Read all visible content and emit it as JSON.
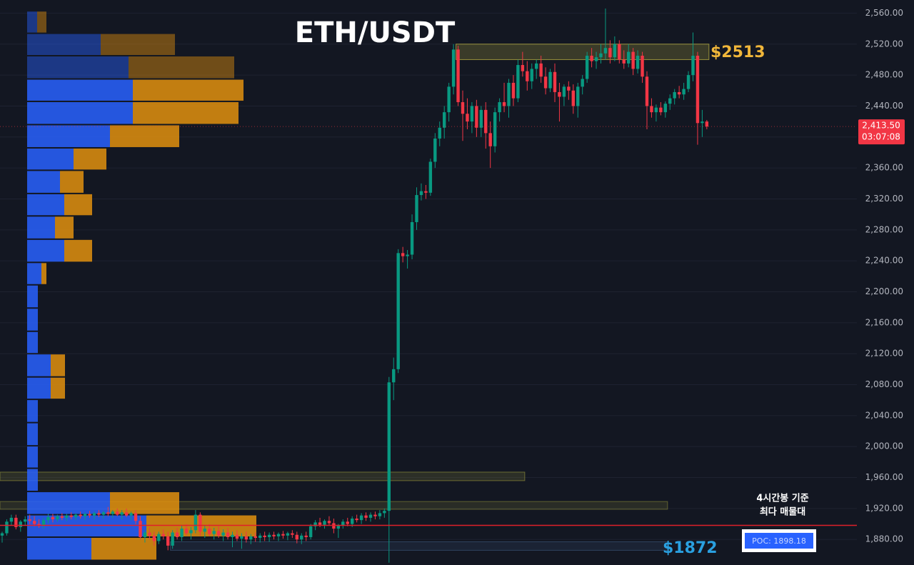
{
  "chart_data": {
    "type": "candlestick",
    "title": "ETH/USDT",
    "ylim": [
      1847,
      2577
    ],
    "yticks": [
      {
        "value": 1880,
        "label": "1,880.00"
      },
      {
        "value": 1920,
        "label": "1,920.00"
      },
      {
        "value": 1960,
        "label": "1,960.00"
      },
      {
        "value": 2000,
        "label": "2,000.00"
      },
      {
        "value": 2040,
        "label": "2,040.00"
      },
      {
        "value": 2080,
        "label": "2,080.00"
      },
      {
        "value": 2120,
        "label": "2,120.00"
      },
      {
        "value": 2160,
        "label": "2,160.00"
      },
      {
        "value": 2200,
        "label": "2,200.00"
      },
      {
        "value": 2240,
        "label": "2,240.00"
      },
      {
        "value": 2280,
        "label": "2,280.00"
      },
      {
        "value": 2320,
        "label": "2,320.00"
      },
      {
        "value": 2360,
        "label": "2,360.00"
      },
      {
        "value": 2400,
        "label": "2,400.00"
      },
      {
        "value": 2440,
        "label": "2,440.00"
      },
      {
        "value": 2480,
        "label": "2,480.00"
      },
      {
        "value": 2520,
        "label": "2,520.00"
      },
      {
        "value": 2560,
        "label": "2,560.00"
      }
    ],
    "grid": true,
    "up_color": "#089981",
    "down_color": "#f23645",
    "candles": [
      [
        1885,
        1890,
        1876,
        1888
      ],
      [
        1888,
        1906,
        1885,
        1903
      ],
      [
        1903,
        1912,
        1898,
        1908
      ],
      [
        1908,
        1912,
        1893,
        1896
      ],
      [
        1896,
        1905,
        1890,
        1903
      ],
      [
        1903,
        1910,
        1898,
        1906
      ],
      [
        1906,
        1912,
        1900,
        1904
      ],
      [
        1904,
        1910,
        1897,
        1900
      ],
      [
        1900,
        1906,
        1895,
        1898
      ],
      [
        1898,
        1908,
        1894,
        1905
      ],
      [
        1905,
        1913,
        1901,
        1909
      ],
      [
        1909,
        1913,
        1902,
        1906
      ],
      [
        1906,
        1912,
        1903,
        1910
      ],
      [
        1910,
        1914,
        1905,
        1908
      ],
      [
        1908,
        1913,
        1904,
        1911
      ],
      [
        1911,
        1915,
        1906,
        1909
      ],
      [
        1909,
        1914,
        1905,
        1912
      ],
      [
        1912,
        1916,
        1907,
        1910
      ],
      [
        1910,
        1915,
        1905,
        1913
      ],
      [
        1913,
        1917,
        1908,
        1911
      ],
      [
        1911,
        1916,
        1906,
        1914
      ],
      [
        1914,
        1918,
        1909,
        1912
      ],
      [
        1912,
        1917,
        1907,
        1915
      ],
      [
        1915,
        1922,
        1910,
        1913
      ],
      [
        1913,
        1918,
        1908,
        1916
      ],
      [
        1916,
        1920,
        1910,
        1912
      ],
      [
        1912,
        1918,
        1906,
        1915
      ],
      [
        1915,
        1920,
        1909,
        1911
      ],
      [
        1911,
        1916,
        1905,
        1914
      ],
      [
        1914,
        1918,
        1900,
        1904
      ],
      [
        1904,
        1910,
        1880,
        1883
      ],
      [
        1883,
        1892,
        1876,
        1889
      ],
      [
        1889,
        1895,
        1880,
        1885
      ],
      [
        1885,
        1890,
        1872,
        1878
      ],
      [
        1878,
        1890,
        1874,
        1887
      ],
      [
        1887,
        1893,
        1880,
        1884
      ],
      [
        1884,
        1890,
        1866,
        1872
      ],
      [
        1872,
        1892,
        1868,
        1889
      ],
      [
        1889,
        1895,
        1880,
        1883
      ],
      [
        1883,
        1898,
        1878,
        1894
      ],
      [
        1894,
        1900,
        1885,
        1888
      ],
      [
        1888,
        1896,
        1880,
        1892
      ],
      [
        1892,
        1918,
        1888,
        1912
      ],
      [
        1912,
        1915,
        1885,
        1890
      ],
      [
        1890,
        1898,
        1882,
        1894
      ],
      [
        1894,
        1900,
        1884,
        1887
      ],
      [
        1887,
        1895,
        1880,
        1891
      ],
      [
        1891,
        1897,
        1882,
        1885
      ],
      [
        1885,
        1893,
        1878,
        1889
      ],
      [
        1889,
        1895,
        1880,
        1883
      ],
      [
        1883,
        1890,
        1870,
        1886
      ],
      [
        1886,
        1892,
        1878,
        1881
      ],
      [
        1881,
        1888,
        1868,
        1884
      ],
      [
        1884,
        1890,
        1876,
        1880
      ],
      [
        1880,
        1887,
        1874,
        1884
      ],
      [
        1884,
        1889,
        1877,
        1882
      ],
      [
        1882,
        1888,
        1876,
        1885
      ],
      [
        1885,
        1890,
        1878,
        1883
      ],
      [
        1883,
        1889,
        1877,
        1886
      ],
      [
        1886,
        1890,
        1880,
        1884
      ],
      [
        1884,
        1889,
        1878,
        1887
      ],
      [
        1887,
        1891,
        1881,
        1885
      ],
      [
        1885,
        1890,
        1879,
        1888
      ],
      [
        1888,
        1892,
        1882,
        1886
      ],
      [
        1886,
        1890,
        1875,
        1880
      ],
      [
        1880,
        1888,
        1874,
        1885
      ],
      [
        1885,
        1890,
        1878,
        1883
      ],
      [
        1883,
        1900,
        1880,
        1897
      ],
      [
        1897,
        1905,
        1892,
        1902
      ],
      [
        1902,
        1908,
        1896,
        1899
      ],
      [
        1899,
        1906,
        1894,
        1904
      ],
      [
        1904,
        1910,
        1898,
        1901
      ],
      [
        1901,
        1907,
        1888,
        1894
      ],
      [
        1894,
        1900,
        1882,
        1898
      ],
      [
        1898,
        1906,
        1894,
        1903
      ],
      [
        1903,
        1908,
        1897,
        1900
      ],
      [
        1900,
        1910,
        1896,
        1907
      ],
      [
        1907,
        1912,
        1902,
        1905
      ],
      [
        1905,
        1914,
        1900,
        1911
      ],
      [
        1911,
        1915,
        1904,
        1908
      ],
      [
        1908,
        1915,
        1903,
        1912
      ],
      [
        1912,
        1916,
        1906,
        1910
      ],
      [
        1910,
        1918,
        1906,
        1914
      ],
      [
        1914,
        1920,
        1908,
        1917
      ],
      [
        1917,
        2090,
        1850,
        2083
      ],
      [
        2083,
        2115,
        2060,
        2100
      ],
      [
        2100,
        2255,
        2095,
        2250
      ],
      [
        2250,
        2258,
        2238,
        2246
      ],
      [
        2246,
        2254,
        2230,
        2248
      ],
      [
        2248,
        2300,
        2242,
        2290
      ],
      [
        2290,
        2335,
        2280,
        2325
      ],
      [
        2325,
        2340,
        2318,
        2330
      ],
      [
        2330,
        2338,
        2320,
        2328
      ],
      [
        2328,
        2372,
        2324,
        2368
      ],
      [
        2368,
        2405,
        2360,
        2398
      ],
      [
        2398,
        2420,
        2388,
        2412
      ],
      [
        2412,
        2440,
        2398,
        2432
      ],
      [
        2432,
        2470,
        2420,
        2465
      ],
      [
        2465,
        2520,
        2455,
        2513
      ],
      [
        2513,
        2518,
        2440,
        2445
      ],
      [
        2445,
        2460,
        2395,
        2430
      ],
      [
        2430,
        2450,
        2410,
        2420
      ],
      [
        2420,
        2445,
        2405,
        2440
      ],
      [
        2440,
        2448,
        2400,
        2412
      ],
      [
        2412,
        2440,
        2400,
        2435
      ],
      [
        2435,
        2445,
        2385,
        2405
      ],
      [
        2405,
        2420,
        2360,
        2388
      ],
      [
        2388,
        2438,
        2380,
        2432
      ],
      [
        2432,
        2450,
        2420,
        2445
      ],
      [
        2445,
        2470,
        2432,
        2440
      ],
      [
        2440,
        2475,
        2425,
        2470
      ],
      [
        2470,
        2480,
        2440,
        2450
      ],
      [
        2450,
        2500,
        2445,
        2493
      ],
      [
        2493,
        2510,
        2478,
        2485
      ],
      [
        2485,
        2498,
        2460,
        2472
      ],
      [
        2472,
        2495,
        2462,
        2488
      ],
      [
        2488,
        2500,
        2475,
        2495
      ],
      [
        2495,
        2505,
        2470,
        2478
      ],
      [
        2478,
        2490,
        2455,
        2463
      ],
      [
        2463,
        2488,
        2458,
        2484
      ],
      [
        2484,
        2495,
        2445,
        2458
      ],
      [
        2458,
        2470,
        2420,
        2452
      ],
      [
        2452,
        2468,
        2440,
        2465
      ],
      [
        2465,
        2472,
        2448,
        2460
      ],
      [
        2460,
        2468,
        2430,
        2440
      ],
      [
        2440,
        2470,
        2425,
        2465
      ],
      [
        2465,
        2480,
        2455,
        2475
      ],
      [
        2475,
        2510,
        2470,
        2505
      ],
      [
        2505,
        2515,
        2490,
        2498
      ],
      [
        2498,
        2510,
        2488,
        2503
      ],
      [
        2503,
        2520,
        2495,
        2508
      ],
      [
        2508,
        2566,
        2500,
        2515
      ],
      [
        2515,
        2525,
        2495,
        2503
      ],
      [
        2503,
        2530,
        2498,
        2520
      ],
      [
        2520,
        2525,
        2495,
        2500
      ],
      [
        2500,
        2512,
        2488,
        2495
      ],
      [
        2495,
        2520,
        2490,
        2510
      ],
      [
        2510,
        2515,
        2480,
        2488
      ],
      [
        2488,
        2512,
        2482,
        2505
      ],
      [
        2505,
        2510,
        2470,
        2478
      ],
      [
        2478,
        2485,
        2410,
        2440
      ],
      [
        2440,
        2450,
        2425,
        2432
      ],
      [
        2432,
        2442,
        2420,
        2438
      ],
      [
        2438,
        2445,
        2428,
        2432
      ],
      [
        2432,
        2446,
        2425,
        2443
      ],
      [
        2443,
        2455,
        2435,
        2450
      ],
      [
        2450,
        2462,
        2442,
        2458
      ],
      [
        2458,
        2466,
        2450,
        2455
      ],
      [
        2455,
        2470,
        2448,
        2462
      ],
      [
        2462,
        2485,
        2458,
        2480
      ],
      [
        2480,
        2535,
        2472,
        2505
      ],
      [
        2505,
        2510,
        2390,
        2418
      ],
      [
        2418,
        2435,
        2400,
        2420
      ],
      [
        2420,
        2422,
        2410,
        2413.5
      ]
    ],
    "profile": {
      "levels": [
        2534,
        2505,
        2475,
        2446,
        2416,
        2386,
        2357,
        2327,
        2298,
        2268,
        2238,
        2209,
        2179,
        2149,
        2120,
        2090,
        2061,
        2031,
        2001,
        1972,
        1942,
        1912,
        1883,
        1853
      ],
      "buy": [
        14,
        103,
        142,
        148,
        148,
        116,
        65,
        46,
        52,
        39,
        52,
        20,
        15,
        15,
        15,
        33,
        33,
        15,
        15,
        15,
        15,
        116,
        167,
        90
      ],
      "sell": [
        13,
        104,
        148,
        155,
        148,
        97,
        46,
        33,
        39,
        26,
        39,
        7,
        0,
        0,
        0,
        20,
        20,
        0,
        0,
        0,
        0,
        97,
        154,
        91
      ],
      "in_value_area": [
        false,
        false,
        false,
        true,
        true,
        true,
        true,
        true,
        true,
        true,
        true,
        true,
        true,
        true,
        true,
        true,
        true,
        true,
        true,
        true,
        true,
        true,
        true,
        true
      ],
      "buy_color": "#2962ff",
      "sell_color": "#e2900e"
    },
    "zones": [
      {
        "low": 2500,
        "high": 2520,
        "from": 99,
        "to": 153,
        "color": "#c8bd45"
      },
      {
        "low": 1956,
        "high": 1967,
        "from": 0,
        "to": 113,
        "color": "#8a8a3a"
      },
      {
        "low": 1919,
        "high": 1929,
        "from": 0,
        "to": 144,
        "color": "#7a7a36"
      },
      {
        "low": 1866,
        "high": 1877,
        "from": 37,
        "to": 144,
        "color": "#3a5275"
      }
    ],
    "price_annotation_high": "$2513",
    "price_annotation_low": "$1872",
    "poc": 1898.18,
    "poc_label": "POC: 1898.18",
    "poc_note": [
      "4시간봉 기준",
      "최다 매물대"
    ],
    "last_price": 2413.5,
    "last_price_label": "2,413.50",
    "countdown": "03:07:08"
  }
}
